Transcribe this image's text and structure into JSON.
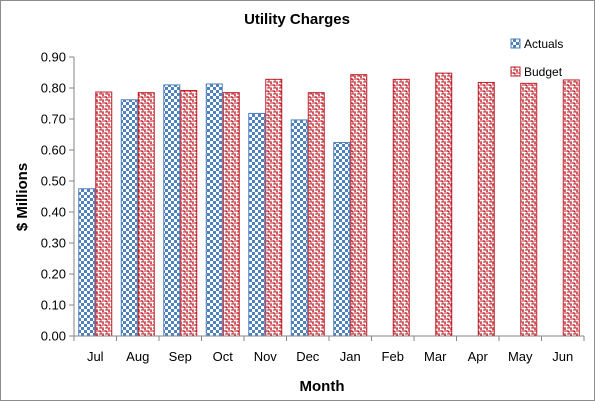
{
  "chart_data": {
    "type": "bar",
    "title": "Utility Charges",
    "xlabel": "Month",
    "ylabel": "$ Millions",
    "ylim": [
      0,
      0.9
    ],
    "yticks": [
      "0.00",
      "0.10",
      "0.20",
      "0.30",
      "0.40",
      "0.50",
      "0.60",
      "0.70",
      "0.80",
      "0.90"
    ],
    "grid": false,
    "legend_position": "top-right",
    "categories": [
      "Jul",
      "Aug",
      "Sep",
      "Oct",
      "Nov",
      "Dec",
      "Jan",
      "Feb",
      "Mar",
      "Apr",
      "May",
      "Jun"
    ],
    "series": [
      {
        "name": "Actuals",
        "color": "#4f81bd",
        "pattern": "checkerboard",
        "values": [
          0.475,
          0.762,
          0.81,
          0.813,
          0.718,
          0.697,
          0.624,
          null,
          null,
          null,
          null,
          null
        ]
      },
      {
        "name": "Budget",
        "color": "#c0202a",
        "pattern": "weave",
        "values": [
          0.787,
          0.785,
          0.792,
          0.785,
          0.828,
          0.785,
          0.843,
          0.828,
          0.848,
          0.818,
          0.815,
          0.826
        ]
      }
    ]
  }
}
